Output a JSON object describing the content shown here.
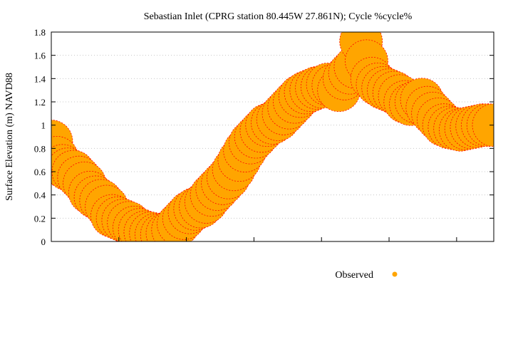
{
  "chart_data": {
    "type": "scatter",
    "title": "Sebastian Inlet (CPRG station 80.445W 27.861N); Cycle %cycle%",
    "xlabel": "",
    "ylabel": "Surface Elevation (m) NAVD88",
    "ylim": [
      0,
      1.8
    ],
    "y_ticks": [
      "0",
      "0.2",
      "0.4",
      "0.6",
      "0.8",
      "1",
      "1.2",
      "1.4",
      "1.6",
      "1.8"
    ],
    "grid": true,
    "legend_position": "bottom-right",
    "series": [
      {
        "name": "Observed",
        "color": "#ffa500",
        "edge_color": "#ff0000",
        "x": [
          0,
          1,
          2,
          3,
          4,
          5,
          6,
          7,
          8,
          9,
          10,
          11,
          12,
          13,
          14,
          15,
          16,
          17,
          18,
          19,
          20,
          21,
          22,
          23,
          24,
          25,
          26,
          27,
          28,
          29,
          30,
          31,
          32,
          33,
          34,
          35,
          36,
          37,
          38,
          39,
          40,
          41,
          42,
          43,
          44,
          45,
          46,
          47,
          48,
          49,
          50,
          51,
          52,
          53,
          54,
          55,
          56,
          57,
          58,
          59,
          60,
          61,
          62,
          63,
          64,
          65,
          66,
          67,
          68,
          69,
          70,
          71,
          72,
          73,
          74,
          75,
          76,
          77,
          78,
          79,
          80
        ],
        "y": [
          0.86,
          0.72,
          0.65,
          0.62,
          0.6,
          0.55,
          0.5,
          0.42,
          0.38,
          0.35,
          0.3,
          0.22,
          0.2,
          0.18,
          0.16,
          0.12,
          0.1,
          0.08,
          0.07,
          0.06,
          0.06,
          0.07,
          0.1,
          0.15,
          0.2,
          0.25,
          0.28,
          0.3,
          0.34,
          0.4,
          0.45,
          0.5,
          0.55,
          0.62,
          0.7,
          0.78,
          0.85,
          0.9,
          0.95,
          1.0,
          1.02,
          1.05,
          1.1,
          1.15,
          1.2,
          1.25,
          1.28,
          1.3,
          1.32,
          1.33,
          1.35,
          1.34,
          1.3,
          1.4,
          1.45,
          1.5,
          1.72,
          1.55,
          1.4,
          1.35,
          1.32,
          1.3,
          1.28,
          1.25,
          1.2,
          1.18,
          1.2,
          1.22,
          1.15,
          1.1,
          1.05,
          1.0,
          0.98,
          0.97,
          0.96,
          0.97,
          0.98,
          0.99,
          1.0,
          1.0,
          1.0
        ]
      }
    ]
  }
}
